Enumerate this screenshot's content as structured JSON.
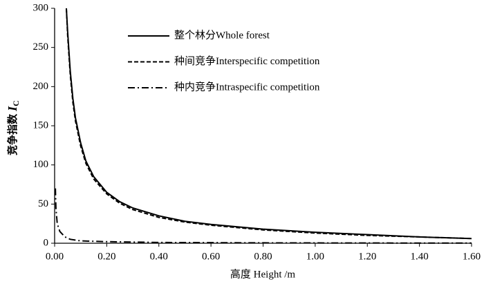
{
  "chart_data": {
    "type": "line",
    "x_label": "高度 Height /m",
    "y_label": "竞争指数",
    "y_label_symbol": "I",
    "y_label_subscript": "C",
    "xlim": [
      0,
      1.6
    ],
    "ylim": [
      0,
      300
    ],
    "xticks": [
      {
        "value": 0,
        "label": "0.00"
      },
      {
        "value": 0.2,
        "label": "0.20"
      },
      {
        "value": 0.4,
        "label": "0.40"
      },
      {
        "value": 0.6,
        "label": "0.60"
      },
      {
        "value": 0.8,
        "label": "0.80"
      },
      {
        "value": 1.0,
        "label": "1.00"
      },
      {
        "value": 1.2,
        "label": "1.20"
      },
      {
        "value": 1.4,
        "label": "1.40"
      },
      {
        "value": 1.6,
        "label": "1.60"
      }
    ],
    "yticks": [
      0,
      50,
      100,
      150,
      200,
      250,
      300
    ],
    "legend": "upper right",
    "series": [
      {
        "name": "整个林分Whole forest",
        "color": "#000000",
        "dash": "solid",
        "x": [
          0.045,
          0.05,
          0.06,
          0.07,
          0.08,
          0.1,
          0.12,
          0.15,
          0.2,
          0.25,
          0.3,
          0.4,
          0.5,
          0.6,
          0.8,
          1.0,
          1.2,
          1.4,
          1.6
        ],
        "values": [
          300,
          270,
          220,
          185,
          160,
          128,
          105,
          85,
          65,
          53,
          45,
          35,
          28,
          24,
          18,
          14,
          11,
          8,
          6
        ]
      },
      {
        "name": "种间竞争Interspecific competition",
        "color": "#000000",
        "dash": "dashed",
        "x": [
          0.045,
          0.05,
          0.06,
          0.07,
          0.08,
          0.1,
          0.12,
          0.15,
          0.2,
          0.25,
          0.3,
          0.4,
          0.5,
          0.6,
          0.8,
          1.0,
          1.2,
          1.4,
          1.6
        ],
        "values": [
          300,
          265,
          215,
          180,
          156,
          124,
          102,
          82,
          63,
          51,
          43,
          33,
          27,
          23,
          17,
          13,
          10,
          8,
          6
        ]
      },
      {
        "name": "种内竞争Intraspecific competition",
        "color": "#000000",
        "dash": "dashdot",
        "x": [
          0.003,
          0.005,
          0.01,
          0.02,
          0.04,
          0.06,
          0.1,
          0.2,
          0.4,
          0.8,
          1.2,
          1.6
        ],
        "values": [
          70,
          45,
          25,
          15,
          8,
          5,
          3,
          2,
          1,
          0.5,
          0.3,
          0.2
        ]
      }
    ]
  }
}
